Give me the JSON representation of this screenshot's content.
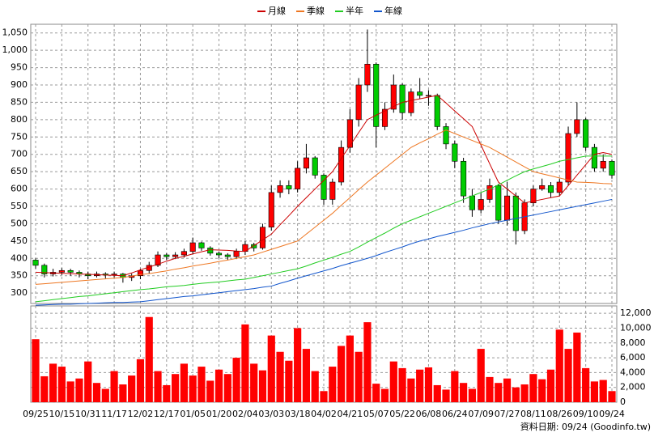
{
  "chart_data": [
    {
      "type": "candlestick",
      "up_color": "#ff0000",
      "down_color": "#00cc00",
      "ylim": [
        270,
        1075
      ],
      "yticks": [
        300,
        350,
        400,
        450,
        500,
        550,
        600,
        650,
        700,
        750,
        800,
        850,
        900,
        950,
        {
          "value": 1000,
          "label": "1,000"
        },
        {
          "value": 1050,
          "label": "1,050"
        }
      ],
      "grid": true,
      "legend": "top",
      "open": [
        395,
        380,
        355,
        360,
        365,
        360,
        355,
        350,
        355,
        352,
        355,
        345,
        350,
        365,
        380,
        410,
        405,
        410,
        420,
        445,
        430,
        415,
        410,
        405,
        420,
        440,
        430,
        490,
        590,
        610,
        600,
        660,
        690,
        640,
        570,
        620,
        720,
        800,
        900,
        960,
        780,
        830,
        900,
        820,
        880,
        870,
        870,
        780,
        730,
        680,
        580,
        540,
        570,
        610,
        510,
        580,
        480,
        560,
        600,
        610,
        590,
        620,
        760,
        800,
        720,
        660,
        680
      ],
      "high": [
        400,
        385,
        370,
        372,
        370,
        365,
        362,
        362,
        360,
        362,
        358,
        356,
        370,
        390,
        420,
        415,
        418,
        428,
        460,
        448,
        435,
        420,
        415,
        428,
        450,
        445,
        500,
        610,
        625,
        625,
        680,
        730,
        695,
        645,
        630,
        740,
        830,
        920,
        1060,
        965,
        850,
        930,
        905,
        890,
        920,
        885,
        875,
        790,
        740,
        690,
        600,
        590,
        630,
        615,
        620,
        590,
        570,
        610,
        630,
        620,
        630,
        780,
        850,
        805,
        730,
        700,
        685
      ],
      "low": [
        370,
        345,
        348,
        352,
        350,
        345,
        340,
        345,
        342,
        345,
        330,
        335,
        340,
        355,
        375,
        395,
        398,
        402,
        412,
        422,
        408,
        400,
        395,
        398,
        410,
        420,
        425,
        480,
        575,
        585,
        590,
        645,
        630,
        555,
        555,
        610,
        705,
        780,
        880,
        720,
        770,
        820,
        800,
        810,
        860,
        840,
        770,
        715,
        660,
        560,
        520,
        530,
        560,
        500,
        495,
        440,
        470,
        550,
        595,
        575,
        580,
        610,
        750,
        710,
        650,
        650,
        630
      ],
      "close": [
        380,
        355,
        360,
        365,
        360,
        355,
        350,
        355,
        352,
        355,
        345,
        350,
        365,
        380,
        410,
        405,
        410,
        420,
        445,
        430,
        415,
        410,
        405,
        420,
        440,
        430,
        490,
        590,
        610,
        600,
        660,
        690,
        640,
        570,
        620,
        720,
        800,
        900,
        960,
        780,
        830,
        900,
        820,
        880,
        870,
        870,
        780,
        730,
        680,
        580,
        540,
        570,
        610,
        510,
        580,
        480,
        560,
        600,
        610,
        590,
        620,
        760,
        800,
        720,
        660,
        680,
        640
      ],
      "series": [
        {
          "name": "月線",
          "color": "#cc0000",
          "values": [
            360,
            359,
            358,
            357,
            356,
            355,
            354,
            353,
            352,
            351,
            350,
            358,
            367,
            375,
            383,
            392,
            400,
            406,
            413,
            419,
            425,
            424,
            423,
            421,
            420,
            437,
            453,
            470,
            497,
            523,
            550,
            575,
            600,
            625,
            650,
            688,
            725,
            763,
            800,
            813,
            825,
            838,
            850,
            855,
            860,
            865,
            870,
            848,
            825,
            803,
            780,
            727,
            673,
            620,
            600,
            580,
            560,
            565,
            570,
            575,
            580,
            610,
            640,
            670,
            700,
            705,
            700
          ]
        },
        {
          "name": "季線",
          "color": "#ee7722",
          "values": [
            325,
            327,
            329,
            331,
            333,
            335,
            337,
            339,
            341,
            343,
            345,
            349,
            353,
            356,
            360,
            364,
            369,
            373,
            378,
            382,
            386,
            391,
            395,
            400,
            405,
            410,
            418,
            426,
            434,
            442,
            450,
            470,
            490,
            510,
            530,
            553,
            575,
            598,
            620,
            640,
            660,
            680,
            700,
            720,
            733,
            745,
            758,
            770,
            760,
            750,
            740,
            730,
            720,
            706,
            692,
            678,
            664,
            650,
            644,
            638,
            632,
            626,
            620,
            619,
            618,
            616,
            615
          ]
        },
        {
          "name": "半年",
          "color": "#22cc22",
          "values": [
            275,
            278,
            281,
            284,
            287,
            290,
            292,
            295,
            298,
            301,
            304,
            307,
            310,
            312,
            315,
            318,
            320,
            322,
            325,
            328,
            330,
            332,
            335,
            338,
            340,
            345,
            350,
            355,
            360,
            365,
            370,
            378,
            387,
            395,
            403,
            412,
            420,
            433,
            447,
            460,
            473,
            487,
            500,
            510,
            520,
            530,
            540,
            550,
            560,
            570,
            580,
            590,
            600,
            612,
            625,
            638,
            650,
            658,
            665,
            672,
            680,
            685,
            690,
            695,
            695,
            695,
            695
          ]
        },
        {
          "name": "年線",
          "color": "#1155cc",
          "values": [
            265,
            266,
            267,
            268,
            268,
            269,
            270,
            271,
            272,
            273,
            273,
            274,
            275,
            278,
            281,
            284,
            287,
            290,
            292,
            295,
            298,
            301,
            304,
            307,
            310,
            313,
            317,
            320,
            328,
            335,
            343,
            350,
            357,
            364,
            371,
            379,
            386,
            393,
            400,
            408,
            417,
            425,
            433,
            442,
            450,
            456,
            463,
            469,
            475,
            481,
            488,
            494,
            500,
            505,
            510,
            515,
            520,
            525,
            530,
            535,
            540,
            545,
            550,
            555,
            560,
            565,
            570
          ]
        }
      ]
    },
    {
      "type": "bar",
      "color": "#ff0000",
      "categories": [
        "09/25",
        null,
        null,
        "10/15",
        null,
        null,
        "10/31",
        null,
        null,
        "11/17",
        null,
        null,
        "12/02",
        null,
        null,
        "12/17",
        null,
        null,
        "01/05",
        null,
        null,
        "01/20",
        null,
        null,
        "02/04",
        null,
        null,
        "03/03",
        null,
        null,
        "03/18",
        null,
        null,
        "04/02",
        null,
        null,
        "04/21",
        null,
        null,
        "05/07",
        null,
        null,
        "05/22",
        null,
        null,
        "06/08",
        null,
        null,
        "06/24",
        null,
        null,
        "07/09",
        null,
        null,
        "07/27",
        null,
        null,
        "08/11",
        null,
        null,
        "08/26",
        null,
        null,
        "09/10",
        null,
        null,
        "09/24"
      ],
      "values": [
        8500,
        3500,
        5200,
        4800,
        2800,
        3200,
        5500,
        2600,
        1800,
        4200,
        2400,
        3600,
        5800,
        11500,
        4200,
        2300,
        3800,
        5200,
        3600,
        4800,
        2900,
        4400,
        3800,
        6000,
        10500,
        5200,
        4300,
        9000,
        6800,
        5600,
        10000,
        7200,
        4200,
        1500,
        4800,
        7600,
        9000,
        6800,
        10800,
        2500,
        1800,
        5500,
        4600,
        3200,
        4400,
        4700,
        2300,
        1700,
        4200,
        2600,
        1800,
        7200,
        3400,
        2600,
        3200,
        2000,
        2400,
        3800,
        3100,
        4400,
        9800,
        7200,
        9400,
        4600,
        2800,
        3000,
        1500
      ],
      "ylim": [
        0,
        13000
      ],
      "yticks": [
        0,
        {
          "value": 2000,
          "label": "2,000"
        },
        {
          "value": 4000,
          "label": "4,000"
        },
        {
          "value": 6000,
          "label": "6,000"
        },
        {
          "value": 8000,
          "label": "8,000"
        },
        {
          "value": 10000,
          "label": "10,000"
        },
        {
          "value": 12000,
          "label": "12,000"
        }
      ],
      "grid": true,
      "footer": "資料日期: 09/24 (Goodinfo.tw)"
    }
  ]
}
